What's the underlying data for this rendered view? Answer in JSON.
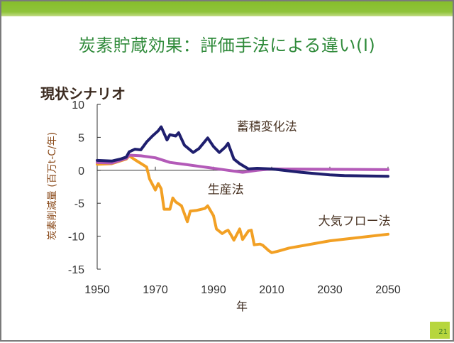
{
  "slide": {
    "title": "炭素貯蔵効果：評価手法による違い(Ⅰ)",
    "scenario_label": "現状シナリオ",
    "page_number": "21",
    "accent_color": "#8fc43a",
    "title_color": "#2f8a3a"
  },
  "chart_data": {
    "type": "line",
    "title": "現状シナリオ",
    "xlabel": "年",
    "ylabel": "炭素削減量 (百万t-C/年)",
    "xlim": [
      1950,
      2050
    ],
    "ylim": [
      -15,
      10
    ],
    "x_ticks": [
      1950,
      1970,
      1990,
      2010,
      2030,
      2050
    ],
    "y_ticks": [
      10,
      5,
      0,
      -5,
      -10,
      -15
    ],
    "grid": false,
    "legend": "inline-labels",
    "series": [
      {
        "name": "蓄積変化法",
        "color": "#1f1f6e",
        "points": [
          [
            1950,
            1.5
          ],
          [
            1955,
            1.4
          ],
          [
            1958,
            1.7
          ],
          [
            1960,
            2.0
          ],
          [
            1961,
            2.8
          ],
          [
            1963,
            3.2
          ],
          [
            1965,
            3.1
          ],
          [
            1967,
            4.3
          ],
          [
            1969,
            5.2
          ],
          [
            1970,
            5.6
          ],
          [
            1971,
            6.0
          ],
          [
            1972,
            6.6
          ],
          [
            1974,
            4.6
          ],
          [
            1975,
            5.4
          ],
          [
            1977,
            5.2
          ],
          [
            1978,
            5.7
          ],
          [
            1980,
            3.8
          ],
          [
            1983,
            2.7
          ],
          [
            1985,
            3.3
          ],
          [
            1988,
            4.9
          ],
          [
            1990,
            3.6
          ],
          [
            1992,
            2.7
          ],
          [
            1994,
            3.5
          ],
          [
            1995,
            4.1
          ],
          [
            1997,
            1.7
          ],
          [
            1999,
            1.0
          ],
          [
            2002,
            0.2
          ],
          [
            2005,
            0.3
          ],
          [
            2010,
            0.2
          ],
          [
            2020,
            -0.3
          ],
          [
            2030,
            -0.7
          ],
          [
            2035,
            -0.8
          ],
          [
            2050,
            -0.9
          ]
        ]
      },
      {
        "name": "生産法",
        "color": "#b35ab8",
        "points": [
          [
            1950,
            1.2
          ],
          [
            1955,
            1.1
          ],
          [
            1960,
            1.8
          ],
          [
            1961,
            2.3
          ],
          [
            1965,
            2.2
          ],
          [
            1970,
            1.9
          ],
          [
            1975,
            1.2
          ],
          [
            1980,
            0.9
          ],
          [
            1985,
            0.6
          ],
          [
            1990,
            0.3
          ],
          [
            1995,
            0.0
          ],
          [
            2000,
            -0.3
          ],
          [
            2005,
            0.0
          ],
          [
            2010,
            0.2
          ],
          [
            2050,
            0.1
          ]
        ]
      },
      {
        "name": "大気フロー法",
        "color": "#f2a024",
        "points": [
          [
            1950,
            0.9
          ],
          [
            1955,
            1.0
          ],
          [
            1960,
            1.7
          ],
          [
            1961,
            2.2
          ],
          [
            1963,
            1.6
          ],
          [
            1967,
            0.5
          ],
          [
            1968,
            -1.3
          ],
          [
            1970,
            -3.0
          ],
          [
            1971,
            -2.0
          ],
          [
            1972,
            -2.8
          ],
          [
            1973,
            -5.9
          ],
          [
            1975,
            -5.9
          ],
          [
            1976,
            -4.2
          ],
          [
            1977,
            -4.8
          ],
          [
            1979,
            -5.4
          ],
          [
            1981,
            -7.8
          ],
          [
            1982,
            -6.2
          ],
          [
            1984,
            -6.1
          ],
          [
            1987,
            -5.8
          ],
          [
            1988,
            -5.4
          ],
          [
            1990,
            -6.9
          ],
          [
            1991,
            -8.9
          ],
          [
            1993,
            -9.6
          ],
          [
            1994,
            -9.3
          ],
          [
            1995,
            -9.1
          ],
          [
            1996,
            -9.8
          ],
          [
            1997,
            -10.6
          ],
          [
            1999,
            -8.9
          ],
          [
            2000,
            -10.5
          ],
          [
            2002,
            -9.2
          ],
          [
            2003,
            -9.1
          ],
          [
            2004,
            -11.3
          ],
          [
            2006,
            -11.2
          ],
          [
            2007,
            -11.4
          ],
          [
            2009,
            -12.2
          ],
          [
            2010,
            -12.5
          ],
          [
            2012,
            -12.3
          ],
          [
            2016,
            -11.8
          ],
          [
            2030,
            -10.7
          ],
          [
            2050,
            -9.7
          ]
        ]
      }
    ],
    "annotations": [
      {
        "text": "蓄積変化法",
        "series": "蓄積変化法",
        "at": [
          1998,
          6.0
        ]
      },
      {
        "text": "生産法",
        "series": "生産法",
        "at": [
          1988,
          -3.5
        ]
      },
      {
        "text": "大気フロー法",
        "series": "大気フロー法",
        "at": [
          2026,
          -8.3
        ]
      }
    ]
  }
}
